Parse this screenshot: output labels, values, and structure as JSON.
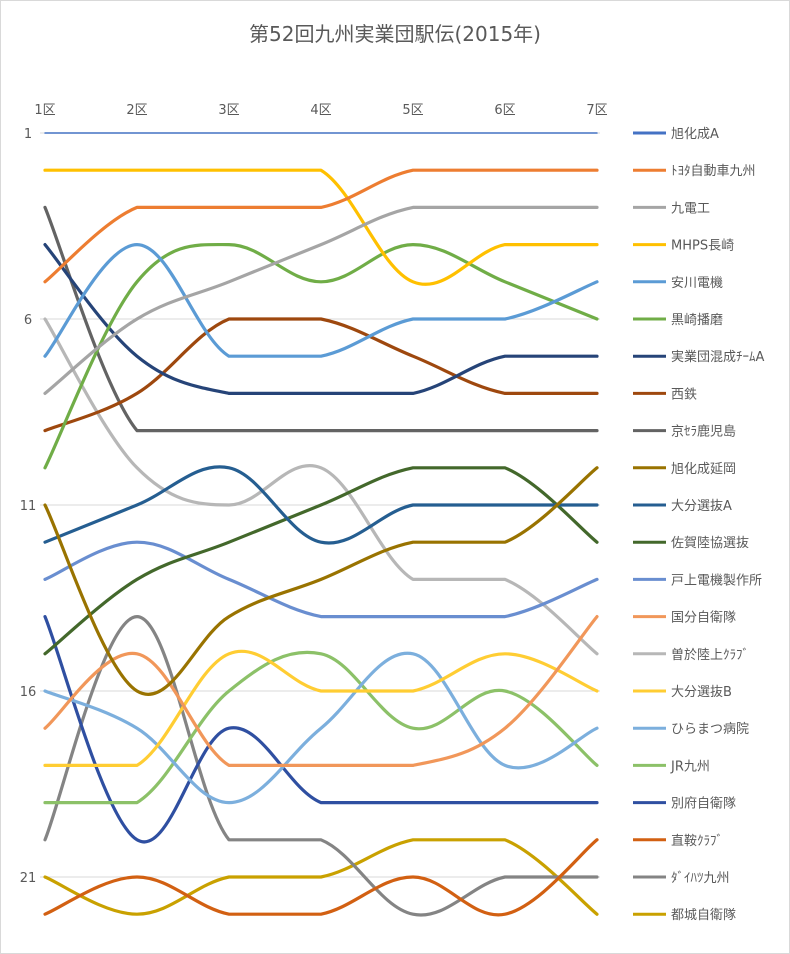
{
  "chart_data": {
    "type": "line",
    "title": "第52回九州実業団駅伝(2015年)",
    "categories": [
      "1区",
      "2区",
      "3区",
      "4区",
      "5区",
      "6区",
      "7区"
    ],
    "y_axis": {
      "reversed": true,
      "range": [
        1,
        22
      ],
      "tick_labels": [
        "1",
        "6",
        "11",
        "16",
        "21"
      ]
    },
    "grid": true,
    "legend_position": "right",
    "series": [
      {
        "name": "旭化成A",
        "color": "#4472c4",
        "values": [
          1,
          1,
          1,
          1,
          1,
          1,
          1
        ],
        "width": 1.5
      },
      {
        "name": "ﾄﾖﾀ自動車九州",
        "color": "#ed7d31",
        "values": [
          5,
          3,
          3,
          3,
          2,
          2,
          2
        ]
      },
      {
        "name": "九電工",
        "color": "#a5a5a5",
        "values": [
          8,
          6,
          5,
          4,
          3,
          3,
          3
        ]
      },
      {
        "name": "MHPS長崎",
        "color": "#ffc000",
        "values": [
          2,
          2,
          2,
          2,
          5,
          4,
          4
        ]
      },
      {
        "name": "安川電機",
        "color": "#5b9bd5",
        "values": [
          7,
          4,
          7,
          7,
          6,
          6,
          5
        ]
      },
      {
        "name": "黒崎播磨",
        "color": "#70ad47",
        "values": [
          10,
          5,
          4,
          5,
          4,
          5,
          6
        ]
      },
      {
        "name": "実業団混成ﾁｰﾑA",
        "color": "#264478",
        "values": [
          4,
          7,
          8,
          8,
          8,
          7,
          7
        ]
      },
      {
        "name": "西鉄",
        "color": "#9e480e",
        "values": [
          9,
          8,
          6,
          6,
          7,
          8,
          8
        ]
      },
      {
        "name": "京ｾﾗ鹿児島",
        "color": "#636363",
        "values": [
          3,
          9,
          9,
          9,
          9,
          9,
          9
        ]
      },
      {
        "name": "旭化成延岡",
        "color": "#997300",
        "values": [
          11,
          16,
          14,
          13,
          12,
          12,
          10
        ]
      },
      {
        "name": "大分選抜A",
        "color": "#255e91",
        "values": [
          12,
          11,
          10,
          12,
          11,
          11,
          11
        ]
      },
      {
        "name": "佐賀陸協選抜",
        "color": "#43682b",
        "values": [
          15,
          13,
          12,
          11,
          10,
          10,
          12
        ]
      },
      {
        "name": "戸上電機製作所",
        "color": "#698ed0",
        "values": [
          13,
          12,
          13,
          14,
          14,
          14,
          13
        ]
      },
      {
        "name": "国分自衛隊",
        "color": "#f1975a",
        "values": [
          17,
          15,
          18,
          18,
          18,
          17,
          14
        ]
      },
      {
        "name": "曽於陸上ｸﾗﾌﾞ",
        "color": "#b7b7b7",
        "values": [
          6,
          10,
          11,
          10,
          13,
          13,
          15
        ]
      },
      {
        "name": "大分選抜B",
        "color": "#ffcd33",
        "values": [
          18,
          18,
          15,
          16,
          16,
          15,
          16
        ]
      },
      {
        "name": "ひらまつ病院",
        "color": "#7cafdd",
        "values": [
          16,
          17,
          19,
          17,
          15,
          18,
          17
        ]
      },
      {
        "name": "JR九州",
        "color": "#8cc168",
        "values": [
          19,
          19,
          16,
          15,
          17,
          16,
          18
        ]
      },
      {
        "name": "別府自衛隊",
        "color": "#2f4fa1",
        "values": [
          14,
          20,
          17,
          19,
          19,
          19,
          19
        ]
      },
      {
        "name": "直鞍ｸﾗﾌﾞ",
        "color": "#d26012",
        "values": [
          22,
          21,
          22,
          22,
          21,
          22,
          20
        ]
      },
      {
        "name": "ﾀﾞｲﾊﾂ九州",
        "color": "#848484",
        "values": [
          20,
          14,
          20,
          20,
          22,
          21,
          21
        ]
      },
      {
        "name": "都城自衛隊",
        "color": "#c9a100",
        "values": [
          21,
          22,
          21,
          21,
          20,
          20,
          22
        ]
      }
    ]
  }
}
